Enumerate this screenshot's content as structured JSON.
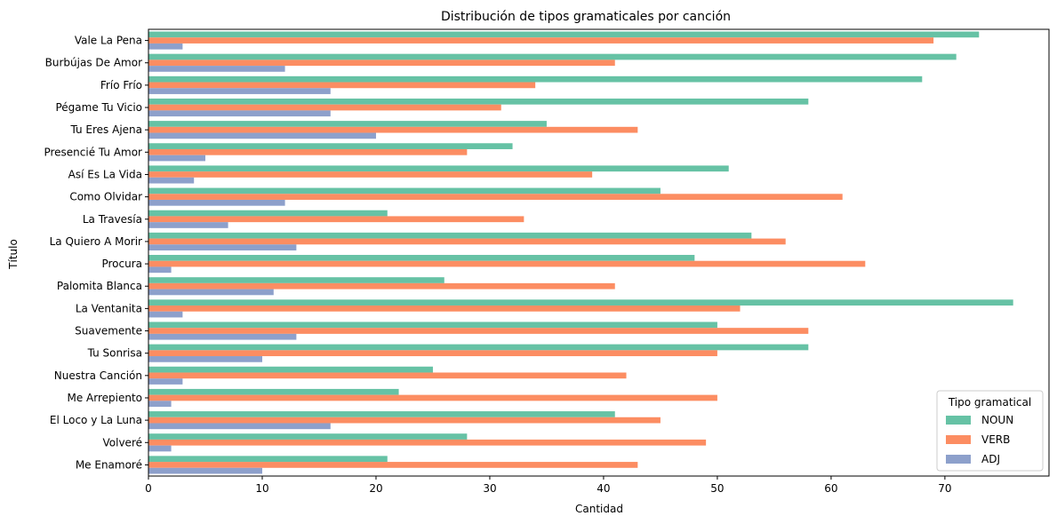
{
  "chart_data": {
    "type": "bar",
    "orientation": "horizontal",
    "title": "Distribución de tipos gramaticales por canción",
    "xlabel": "Cantidad",
    "ylabel": "Título",
    "xlim": [
      0,
      80
    ],
    "x_ticks": [
      0,
      10,
      20,
      30,
      40,
      50,
      60,
      70
    ],
    "grid": false,
    "legend": {
      "title": "Tipo gramatical",
      "placement": "lower-right"
    },
    "categories": [
      "Vale La Pena",
      "Burbújas De Amor",
      "Frío Frío",
      "Pégame Tu Vicio",
      "Tu Eres Ajena",
      "Presencié Tu Amor",
      "Así Es La Vida",
      "Como Olvidar",
      "La Travesía",
      "La Quiero A Morir",
      "Procura",
      "Palomita Blanca",
      "La Ventanita",
      "Suavemente",
      "Tu Sonrisa",
      "Nuestra Canción",
      "Me Arrepiento",
      "El Loco y La Luna",
      "Volveré",
      "Me Enamoré"
    ],
    "series": [
      {
        "name": "NOUN",
        "color": "#66c2a5",
        "values": [
          73,
          71,
          68,
          58,
          35,
          32,
          51,
          45,
          21,
          53,
          48,
          26,
          76,
          50,
          58,
          25,
          22,
          41,
          28,
          21
        ]
      },
      {
        "name": "VERB",
        "color": "#fc8d62",
        "values": [
          69,
          41,
          34,
          31,
          43,
          28,
          39,
          61,
          33,
          56,
          63,
          41,
          52,
          58,
          50,
          42,
          50,
          45,
          49,
          43
        ]
      },
      {
        "name": "ADJ",
        "color": "#8da0cb",
        "values": [
          3,
          12,
          16,
          16,
          20,
          5,
          4,
          12,
          7,
          13,
          2,
          11,
          3,
          13,
          10,
          3,
          2,
          16,
          2,
          10
        ]
      }
    ]
  }
}
